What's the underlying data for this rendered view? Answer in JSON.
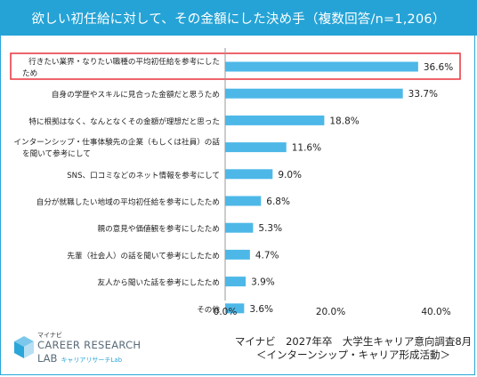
{
  "chart_data": {
    "type": "bar",
    "orientation": "horizontal",
    "title": "欲しい初任給に対して、その金額にした決め手（複数回答/n=1,206）",
    "categories": [
      [
        "行きたい業界・なりたい職種の平均初任給を参考にした",
        "ため"
      ],
      [
        "自身の学歴やスキルに見合った金額だと思うため"
      ],
      [
        "特に根拠はなく、なんとなくその金額が理想だと思った"
      ],
      [
        "インターンシップ・仕事体験先の企業（もしくは社員）の話",
        "を聞いて参考にして"
      ],
      [
        "SNS、口コミなどのネット情報を参考にして"
      ],
      [
        "自分が就職したい地域の平均初任給を参考にしたため"
      ],
      [
        "親の意見や価値観を参考にしたため"
      ],
      [
        "先輩（社会人）の話を聞いて参考にしたため"
      ],
      [
        "友人から聞いた話を参考にしたため"
      ],
      [
        "その他"
      ]
    ],
    "values": [
      36.6,
      33.7,
      18.8,
      11.6,
      9.0,
      6.8,
      5.3,
      4.7,
      3.9,
      3.6
    ],
    "value_labels": [
      "36.6%",
      "33.7%",
      "18.8%",
      "11.6%",
      "9.0%",
      "6.8%",
      "5.3%",
      "4.7%",
      "3.9%",
      "3.6%"
    ],
    "xlim": [
      0,
      40
    ],
    "xticks": [
      0,
      20,
      40
    ],
    "xtick_labels": [
      "0.0%",
      "20.0%",
      "40.0%"
    ],
    "highlighted_index": 0,
    "grid": false,
    "colors": {
      "bar": "#4db8e8",
      "highlight_border": "#e8323a",
      "title_bg": "#25a3d6",
      "axis": "#999999"
    }
  },
  "footer": {
    "logo_top": "マイナビ",
    "logo_main": "CAREER RESEARCH",
    "logo_lab": "LAB",
    "logo_sub": "キャリアリサーチLab",
    "source_line1": "マイナビ　2027年卒　大学生キャリア意向調査8月",
    "source_line2": "＜インターンシップ・キャリア形成活動＞"
  }
}
